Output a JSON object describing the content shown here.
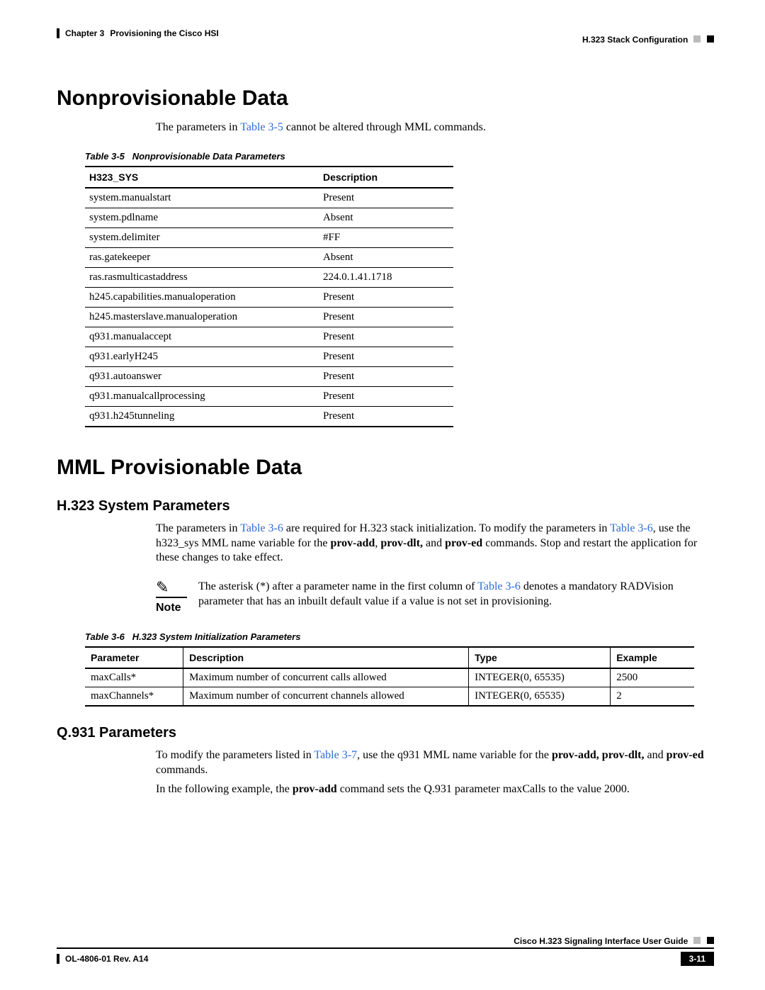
{
  "header": {
    "chapter": "Chapter 3",
    "chapter_title": "Provisioning the Cisco HSI",
    "section_path": "H.323 Stack Configuration"
  },
  "section1": {
    "title": "Nonprovisionable Data",
    "intro_pre": "The parameters in ",
    "intro_link": "Table 3-5",
    "intro_post": " cannot be altered through MML commands."
  },
  "table35": {
    "caption_label": "Table 3-5",
    "caption_title": "Nonprovisionable Data Parameters",
    "col1": "H323_SYS",
    "col2": "Description",
    "rows": [
      [
        "system.manualstart",
        "Present"
      ],
      [
        "system.pdlname",
        "Absent"
      ],
      [
        "system.delimiter",
        "#FF"
      ],
      [
        "ras.gatekeeper",
        "Absent"
      ],
      [
        "ras.rasmulticastaddress",
        "224.0.1.41.1718"
      ],
      [
        "h245.capabilities.manualoperation",
        "Present"
      ],
      [
        "h245.masterslave.manualoperation",
        "Present"
      ],
      [
        "q931.manualaccept",
        "Present"
      ],
      [
        "q931.earlyH245",
        "Present"
      ],
      [
        "q931.autoanswer",
        "Present"
      ],
      [
        "q931.manualcallprocessing",
        "Present"
      ],
      [
        "q931.h245tunneling",
        "Present"
      ]
    ]
  },
  "section2": {
    "title": "MML Provisionable Data",
    "sub1": "H.323 System Parameters",
    "p1_pre": "The parameters in ",
    "p1_link": "Table 3-6",
    "p1_post": " are required for H.323 stack initialization. To modify the parameters in ",
    "p2_link": "Table 3-6",
    "p2_post_a": ", use the h323_sys MML name variable for the ",
    "b1": "prov-add",
    "comma": ", ",
    "b2": "prov-dlt,",
    "and": " and ",
    "b3": "prov-ed",
    "p2_post_b": " commands. Stop and restart the application for these changes to take effect.",
    "note_label": "Note",
    "note_pre": "The asterisk (*) after a parameter name in the first column of ",
    "note_link": "Table 3-6",
    "note_post": " denotes a mandatory RADVision parameter that has an inbuilt default value if a value is not set in provisioning."
  },
  "table36": {
    "caption_label": "Table 3-6",
    "caption_title": "H.323 System Initialization Parameters",
    "cols": [
      "Parameter",
      "Description",
      "Type",
      "Example"
    ],
    "rows": [
      [
        "maxCalls*",
        "Maximum number of concurrent calls allowed",
        "INTEGER(0, 65535)",
        "2500"
      ],
      [
        "maxChannels*",
        "Maximum number of concurrent channels allowed",
        "INTEGER(0, 65535)",
        "2"
      ]
    ]
  },
  "section3": {
    "title": "Q.931 Parameters",
    "p1_pre": "To modify the parameters listed in ",
    "p1_link": "Table 3-7",
    "p1_mid": ", use the q931 MML name variable for the ",
    "b1": "prov-add, prov-dlt,",
    "and": " and ",
    "b2": "prov-ed",
    "p1_post": " commands.",
    "p2_pre": "In the following example, the ",
    "b3": "prov-add",
    "p2_post": " command sets the Q.931 parameter maxCalls to the value 2000."
  },
  "footer": {
    "guide": "Cisco H.323 Signaling Interface User Guide",
    "rev": "OL-4806-01 Rev. A14",
    "page": "3-11"
  }
}
